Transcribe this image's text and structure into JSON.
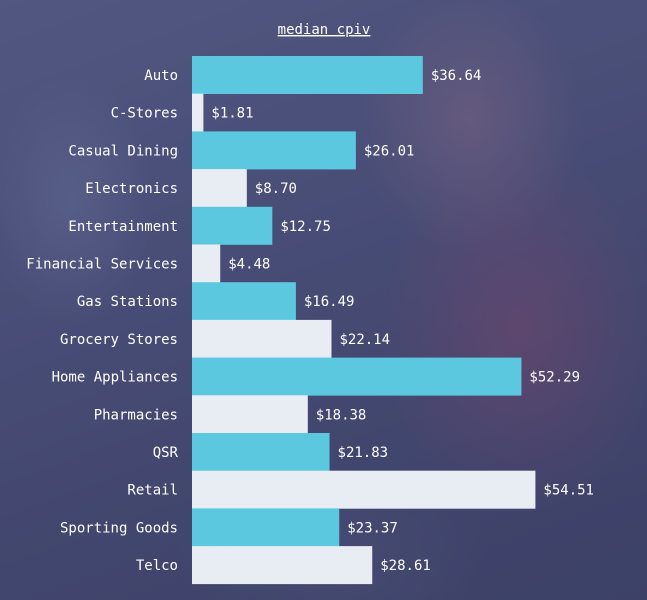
{
  "chart_data": {
    "type": "bar",
    "orientation": "horizontal",
    "title": "median cpiv",
    "categories": [
      "Auto",
      "C-Stores",
      "Casual Dining",
      "Electronics",
      "Entertainment",
      "Financial Services",
      "Gas Stations",
      "Grocery Stores",
      "Home Appliances",
      "Pharmacies",
      "QSR",
      "Retail",
      "Sporting Goods",
      "Telco"
    ],
    "values": [
      36.64,
      1.81,
      26.01,
      8.7,
      12.75,
      4.48,
      16.49,
      22.14,
      52.29,
      18.38,
      21.83,
      54.51,
      23.37,
      28.61
    ],
    "value_labels": [
      "$36.64",
      "$1.81",
      "$26.01",
      "$8.70",
      "$12.75",
      "$4.48",
      "$16.49",
      "$22.14",
      "$52.29",
      "$18.38",
      "$21.83",
      "$54.51",
      "$23.37",
      "$28.61"
    ],
    "xlim": [
      0,
      65
    ],
    "grid": false,
    "colors": {
      "bar_primary": "#5bc8e0",
      "bar_secondary": "#e8edf4",
      "text": "#ffffff"
    }
  }
}
